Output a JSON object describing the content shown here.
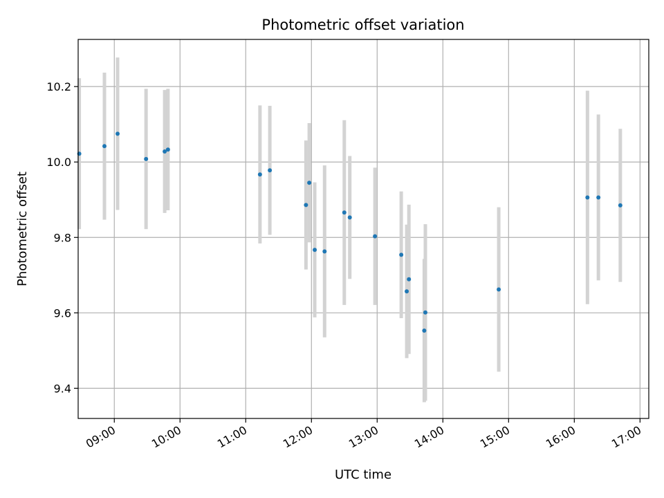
{
  "chart_data": {
    "type": "scatter",
    "title": "Photometric offset variation",
    "xlabel": "UTC time",
    "ylabel": "Photometric offset",
    "x_tick_labels": [
      "09:00",
      "10:00",
      "11:00",
      "12:00",
      "13:00",
      "14:00",
      "15:00",
      "16:00",
      "17:00"
    ],
    "x_ticks": [
      "09:00",
      "10:00",
      "11:00",
      "12:00",
      "13:00",
      "14:00",
      "15:00",
      "16:00",
      "17:00"
    ],
    "y_ticks": [
      9.4,
      9.6,
      9.8,
      10.0,
      10.2
    ],
    "y_tick_labels": [
      "9.4",
      "9.6",
      "9.8",
      "10.0",
      "10.2"
    ],
    "xlim": [
      "08:27",
      "17:08"
    ],
    "ylim": [
      9.32,
      10.325
    ],
    "grid": true,
    "colors": {
      "marker": "#1f77b4",
      "errorbar": "#d3d3d3",
      "grid": "#b0b0b0"
    },
    "points": [
      {
        "x": "08:28",
        "y": 10.022,
        "err": 0.2
      },
      {
        "x": "08:51",
        "y": 10.042,
        "err": 0.195
      },
      {
        "x": "09:03",
        "y": 10.075,
        "err": 0.202
      },
      {
        "x": "09:29",
        "y": 10.008,
        "err": 0.186
      },
      {
        "x": "09:46",
        "y": 10.028,
        "err": 0.163
      },
      {
        "x": "09:49",
        "y": 10.033,
        "err": 0.161
      },
      {
        "x": "11:13",
        "y": 9.967,
        "err": 0.183
      },
      {
        "x": "11:22",
        "y": 9.978,
        "err": 0.171
      },
      {
        "x": "11:55",
        "y": 9.886,
        "err": 0.171
      },
      {
        "x": "11:58",
        "y": 9.945,
        "err": 0.158
      },
      {
        "x": "12:03",
        "y": 9.767,
        "err": 0.179
      },
      {
        "x": "12:12",
        "y": 9.763,
        "err": 0.228
      },
      {
        "x": "12:30",
        "y": 9.866,
        "err": 0.245
      },
      {
        "x": "12:35",
        "y": 9.853,
        "err": 0.163
      },
      {
        "x": "12:58",
        "y": 9.803,
        "err": 0.182
      },
      {
        "x": "13:22",
        "y": 9.754,
        "err": 0.168
      },
      {
        "x": "13:27",
        "y": 9.657,
        "err": 0.177
      },
      {
        "x": "13:29",
        "y": 9.689,
        "err": 0.198
      },
      {
        "x": "13:43",
        "y": 9.553,
        "err": 0.19
      },
      {
        "x": "13:44",
        "y": 9.601,
        "err": 0.234
      },
      {
        "x": "14:51",
        "y": 9.662,
        "err": 0.218
      },
      {
        "x": "16:12",
        "y": 9.906,
        "err": 0.283
      },
      {
        "x": "16:22",
        "y": 9.906,
        "err": 0.22
      },
      {
        "x": "16:42",
        "y": 9.885,
        "err": 0.203
      }
    ]
  }
}
